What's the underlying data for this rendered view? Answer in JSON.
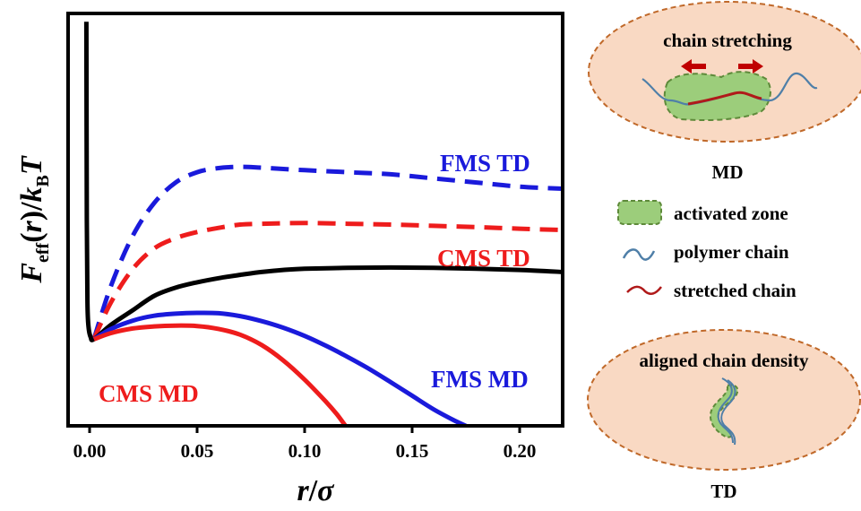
{
  "chart_data": {
    "type": "line",
    "xlabel": "r/σ",
    "ylabel": "Feff(r)/kBT",
    "xlim": [
      -0.01,
      0.22
    ],
    "ylim": [
      0,
      1
    ],
    "x_ticks": [
      "0.00",
      "0.05",
      "0.10",
      "0.15",
      "0.20"
    ],
    "y_ticks_shown": false,
    "grid": false,
    "series": [
      {
        "name": "FMS TD",
        "color": "#1a1adb",
        "style": "dashed",
        "points": [
          [
            0.002,
            0.21
          ],
          [
            0.01,
            0.34
          ],
          [
            0.02,
            0.46
          ],
          [
            0.03,
            0.54
          ],
          [
            0.04,
            0.59
          ],
          [
            0.05,
            0.615
          ],
          [
            0.06,
            0.625
          ],
          [
            0.07,
            0.628
          ],
          [
            0.08,
            0.626
          ],
          [
            0.1,
            0.62
          ],
          [
            0.12,
            0.615
          ],
          [
            0.14,
            0.61
          ],
          [
            0.16,
            0.6
          ],
          [
            0.18,
            0.59
          ],
          [
            0.2,
            0.58
          ],
          [
            0.22,
            0.575
          ]
        ]
      },
      {
        "name": "CMS TD",
        "color": "#ee1c1c",
        "style": "dashed",
        "points": [
          [
            0.002,
            0.21
          ],
          [
            0.01,
            0.3
          ],
          [
            0.02,
            0.38
          ],
          [
            0.03,
            0.43
          ],
          [
            0.04,
            0.455
          ],
          [
            0.05,
            0.47
          ],
          [
            0.06,
            0.48
          ],
          [
            0.07,
            0.488
          ],
          [
            0.08,
            0.49
          ],
          [
            0.1,
            0.492
          ],
          [
            0.12,
            0.49
          ],
          [
            0.14,
            0.488
          ],
          [
            0.16,
            0.485
          ],
          [
            0.18,
            0.482
          ],
          [
            0.2,
            0.478
          ],
          [
            0.22,
            0.475
          ]
        ]
      },
      {
        "name": "",
        "color": "#000000",
        "style": "solid",
        "points": [
          [
            -0.0015,
            0.98
          ],
          [
            -0.0013,
            0.5
          ],
          [
            -0.001,
            0.3
          ],
          [
            -0.0005,
            0.24
          ],
          [
            0.0005,
            0.215
          ],
          [
            0.002,
            0.21
          ],
          [
            0.01,
            0.245
          ],
          [
            0.02,
            0.28
          ],
          [
            0.03,
            0.315
          ],
          [
            0.04,
            0.335
          ],
          [
            0.05,
            0.348
          ],
          [
            0.06,
            0.358
          ],
          [
            0.07,
            0.366
          ],
          [
            0.08,
            0.373
          ],
          [
            0.09,
            0.378
          ],
          [
            0.1,
            0.381
          ],
          [
            0.12,
            0.383
          ],
          [
            0.14,
            0.384
          ],
          [
            0.16,
            0.383
          ],
          [
            0.18,
            0.381
          ],
          [
            0.2,
            0.378
          ],
          [
            0.22,
            0.373
          ]
        ]
      },
      {
        "name": "FMS MD",
        "color": "#1a1adb",
        "style": "solid",
        "points": [
          [
            0.002,
            0.21
          ],
          [
            0.01,
            0.235
          ],
          [
            0.02,
            0.255
          ],
          [
            0.03,
            0.267
          ],
          [
            0.04,
            0.272
          ],
          [
            0.05,
            0.274
          ],
          [
            0.06,
            0.273
          ],
          [
            0.07,
            0.266
          ],
          [
            0.08,
            0.254
          ],
          [
            0.09,
            0.238
          ],
          [
            0.1,
            0.218
          ],
          [
            0.11,
            0.194
          ],
          [
            0.12,
            0.167
          ],
          [
            0.13,
            0.138
          ],
          [
            0.14,
            0.106
          ],
          [
            0.15,
            0.073
          ],
          [
            0.16,
            0.04
          ],
          [
            0.17,
            0.012
          ],
          [
            0.175,
            0.0
          ]
        ]
      },
      {
        "name": "CMS MD",
        "color": "#ee1c1c",
        "style": "solid",
        "points": [
          [
            0.002,
            0.21
          ],
          [
            0.01,
            0.225
          ],
          [
            0.02,
            0.236
          ],
          [
            0.03,
            0.241
          ],
          [
            0.04,
            0.243
          ],
          [
            0.05,
            0.242
          ],
          [
            0.06,
            0.235
          ],
          [
            0.07,
            0.221
          ],
          [
            0.08,
            0.196
          ],
          [
            0.09,
            0.159
          ],
          [
            0.1,
            0.112
          ],
          [
            0.11,
            0.058
          ],
          [
            0.115,
            0.028
          ],
          [
            0.119,
            0.0
          ]
        ]
      }
    ]
  },
  "panel": {
    "md_bubble": {
      "title": "chain stretching"
    },
    "md_label": "MD",
    "legend": [
      {
        "key": "activated-zone",
        "label": "activated zone"
      },
      {
        "key": "polymer-chain",
        "label": "polymer chain"
      },
      {
        "key": "stretched-chain",
        "label": "stretched chain"
      }
    ],
    "td_bubble": {
      "title": "aligned chain density"
    },
    "td_label": "TD",
    "colors": {
      "bubble_fill": "#f9d9c3",
      "bubble_border": "#c0692a",
      "zone_fill": "#9ccd7b",
      "zone_border": "#5e8a3a",
      "polymer_chain": "#4f7fa8",
      "stretched_chain": "#b01a1a",
      "arrow": "#c00000"
    }
  }
}
